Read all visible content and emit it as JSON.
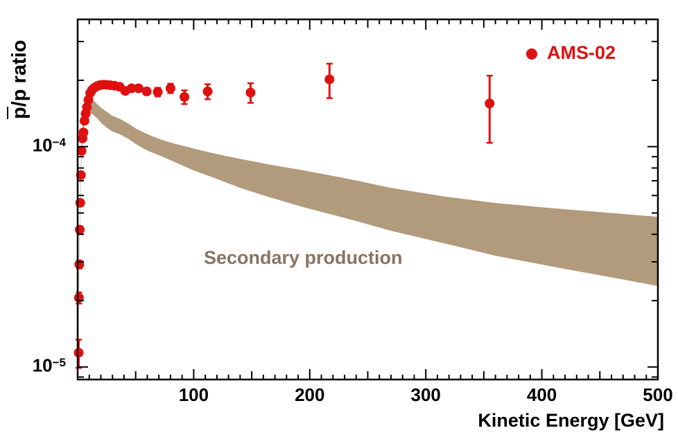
{
  "figure": {
    "y_axis_title": {
      "pbar": "p",
      "rest": "/p ratio"
    },
    "x_axis_title": "Kinetic Energy [GeV]",
    "legend": {
      "label": "AMS-02"
    },
    "band_label": "Secondary production",
    "colors": {
      "points": "#e01010",
      "band": "#b29b7d",
      "band_label": "#8a7363",
      "axis": "#000000",
      "background": "#ffffff"
    }
  },
  "chart_data": {
    "type": "scatter",
    "title": "",
    "xlabel": "Kinetic Energy [GeV]",
    "ylabel": "pbar/p ratio",
    "xlim": [
      0,
      500
    ],
    "ylim": [
      8.77e-06,
      0.000378
    ],
    "ylog": true,
    "grid": false,
    "legend_position": "top-right",
    "x_tick_labels": [
      {
        "value": 100,
        "label": "100"
      },
      {
        "value": 200,
        "label": "200"
      },
      {
        "value": 300,
        "label": "300"
      },
      {
        "value": 400,
        "label": "400"
      },
      {
        "value": 500,
        "label": "500"
      }
    ],
    "x_minor_step": 10,
    "y_tick_labels": [
      {
        "value": 0.0001,
        "base": "10",
        "exp": "−4"
      },
      {
        "value": 1e-05,
        "base": "10",
        "exp": "−5"
      }
    ],
    "series": [
      {
        "name": "AMS-02",
        "marker": "circle",
        "points": [
          [
            0.9,
            1.16e-05,
            1.7e-06
          ],
          [
            1.1,
            2.06e-05,
            1.2e-06
          ],
          [
            1.4,
            2.92e-05,
            1.2e-06
          ],
          [
            1.8,
            4.2e-05,
            1.3e-06
          ],
          [
            2.2,
            5.56e-05,
            1.5e-06
          ],
          [
            2.8,
            7.43e-05,
            1.5e-06
          ],
          [
            3.4,
            9.57e-05,
            1.8e-06
          ],
          [
            4.2,
            0.000109,
            2e-06
          ],
          [
            5.0,
            0.000116,
            2e-06
          ],
          [
            5.9,
            0.000131,
            2e-06
          ],
          [
            6.9,
            0.000141,
            2e-06
          ],
          [
            8.0,
            0.000151,
            2e-06
          ],
          [
            9.3,
            0.000163,
            2e-06
          ],
          [
            10.8,
            0.000175,
            2e-06
          ],
          [
            12.5,
            0.000181,
            2e-06
          ],
          [
            14.4,
            0.000185,
            2e-06
          ],
          [
            16.5,
            0.000188,
            2e-06
          ],
          [
            18.9,
            0.00019,
            2e-06
          ],
          [
            21.6,
            0.000191,
            2e-06
          ],
          [
            24.6,
            0.000191,
            2e-06
          ],
          [
            28.0,
            0.00019,
            2.5e-06
          ],
          [
            31.8,
            0.000189,
            2.5e-06
          ],
          [
            36.1,
            0.000187,
            4e-06
          ],
          [
            41.0,
            0.000179,
            4e-06
          ],
          [
            46.5,
            0.000184,
            5e-06
          ],
          [
            52.5,
            0.000184,
            5e-06
          ],
          [
            59.5,
            0.000178,
            6e-06
          ],
          [
            69.0,
            0.000177,
            8e-06
          ],
          [
            80.0,
            0.000184,
            9e-06
          ],
          [
            92.0,
            0.000168,
            1.2e-05
          ],
          [
            112.0,
            0.000178,
            1.4e-05
          ],
          [
            149.0,
            0.000176,
            1.8e-05
          ],
          [
            217.0,
            0.000202,
            3.6e-05
          ],
          [
            355.0,
            0.000157,
            5.3e-05
          ]
        ]
      }
    ],
    "band": {
      "name": "Secondary production",
      "upper": [
        [
          0.3,
          8.77e-06
        ],
        [
          0.7,
          1.6e-05
        ],
        [
          1.1,
          2.6e-05
        ],
        [
          1.5,
          3.9e-05
        ],
        [
          2.0,
          5.6e-05
        ],
        [
          2.6,
          7.6e-05
        ],
        [
          3.3,
          0.0001
        ],
        [
          4.2,
          0.000122
        ],
        [
          5.3,
          0.000139
        ],
        [
          6.6,
          0.000151
        ],
        [
          8.2,
          0.000159
        ],
        [
          10,
          0.000163
        ],
        [
          12,
          0.000163
        ],
        [
          14.5,
          0.00016
        ],
        [
          17.5,
          0.000155
        ],
        [
          21,
          0.000149
        ],
        [
          25,
          0.000144
        ],
        [
          30,
          0.000138
        ],
        [
          36,
          0.000134
        ],
        [
          43,
          0.000128
        ],
        [
          51,
          0.00012
        ],
        [
          60,
          0.000114
        ],
        [
          71,
          0.000108
        ],
        [
          84,
          0.000103
        ],
        [
          100,
          9.8e-05
        ],
        [
          118,
          9.3e-05
        ],
        [
          140,
          8.8e-05
        ],
        [
          165,
          8.3e-05
        ],
        [
          195,
          7.8e-05
        ],
        [
          230,
          7.2e-05
        ],
        [
          270,
          6.5e-05
        ],
        [
          315,
          5.95e-05
        ],
        [
          360,
          5.55e-05
        ],
        [
          410,
          5.25e-05
        ],
        [
          460,
          5e-05
        ],
        [
          500,
          4.8e-05
        ]
      ],
      "lower": [
        [
          0.55,
          8.77e-06
        ],
        [
          0.9,
          1.5e-05
        ],
        [
          1.3,
          2.4e-05
        ],
        [
          1.7,
          3.6e-05
        ],
        [
          2.2,
          5.2e-05
        ],
        [
          2.8,
          7.1e-05
        ],
        [
          3.5,
          9.3e-05
        ],
        [
          4.4,
          0.000112
        ],
        [
          5.5,
          0.000126
        ],
        [
          6.8,
          0.000134
        ],
        [
          8.4,
          0.00014
        ],
        [
          10,
          0.000143
        ],
        [
          12,
          0.000141
        ],
        [
          14.5,
          0.000138
        ],
        [
          17.5,
          0.000133
        ],
        [
          21,
          0.000127
        ],
        [
          25,
          0.000122
        ],
        [
          30,
          0.000117
        ],
        [
          36,
          0.000114
        ],
        [
          43,
          0.000109
        ],
        [
          51,
          0.000102
        ],
        [
          60,
          9.6e-05
        ],
        [
          71,
          9.1e-05
        ],
        [
          84,
          8.5e-05
        ],
        [
          100,
          7.8e-05
        ],
        [
          118,
          7.2e-05
        ],
        [
          140,
          6.5e-05
        ],
        [
          165,
          5.9e-05
        ],
        [
          195,
          5.3e-05
        ],
        [
          230,
          4.75e-05
        ],
        [
          270,
          4.15e-05
        ],
        [
          315,
          3.65e-05
        ],
        [
          360,
          3.2e-05
        ],
        [
          410,
          2.85e-05
        ],
        [
          460,
          2.55e-05
        ],
        [
          500,
          2.33e-05
        ]
      ]
    }
  }
}
